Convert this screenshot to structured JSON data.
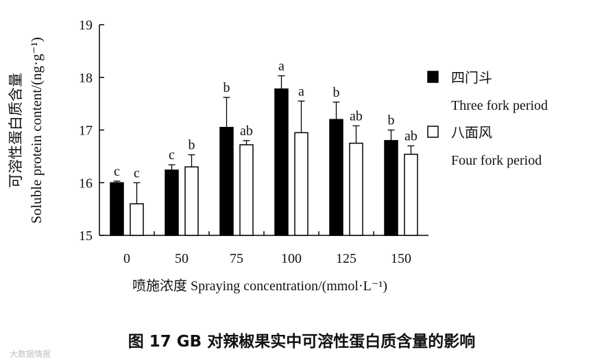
{
  "chart_data": {
    "type": "bar",
    "ylabel_cn": "可溶性蛋白质含量",
    "ylabel_en": "Soluble protein content/(ng·g⁻¹)",
    "xlabel": "喷施浓度 Spraying concentration/(mmol·L⁻¹)",
    "categories": [
      "0",
      "50",
      "75",
      "100",
      "125",
      "150"
    ],
    "ylim": [
      15,
      19
    ],
    "yticks": [
      "15",
      "16",
      "17",
      "18",
      "19"
    ],
    "grid": false,
    "legend_position": "right",
    "series": [
      {
        "name_cn": "四门斗",
        "name_en": "Three fork period",
        "color": "#000000",
        "values": [
          16.0,
          16.24,
          17.05,
          17.78,
          17.2,
          16.8
        ],
        "errors": [
          0.03,
          0.1,
          0.57,
          0.25,
          0.33,
          0.2
        ],
        "letters": [
          "c",
          "c",
          "b",
          "a",
          "b",
          "b"
        ]
      },
      {
        "name_cn": "八面风",
        "name_en": "Four fork period",
        "color": "#ffffff",
        "values": [
          15.6,
          16.3,
          16.72,
          16.95,
          16.75,
          16.54
        ],
        "errors": [
          0.4,
          0.23,
          0.08,
          0.6,
          0.33,
          0.16
        ],
        "letters": [
          "c",
          "b",
          "ab",
          "a",
          "ab",
          "ab"
        ]
      }
    ]
  },
  "caption": "图 17    GB 对辣椒果实中可溶性蛋白质含量的影响",
  "watermark": "大数据情报"
}
